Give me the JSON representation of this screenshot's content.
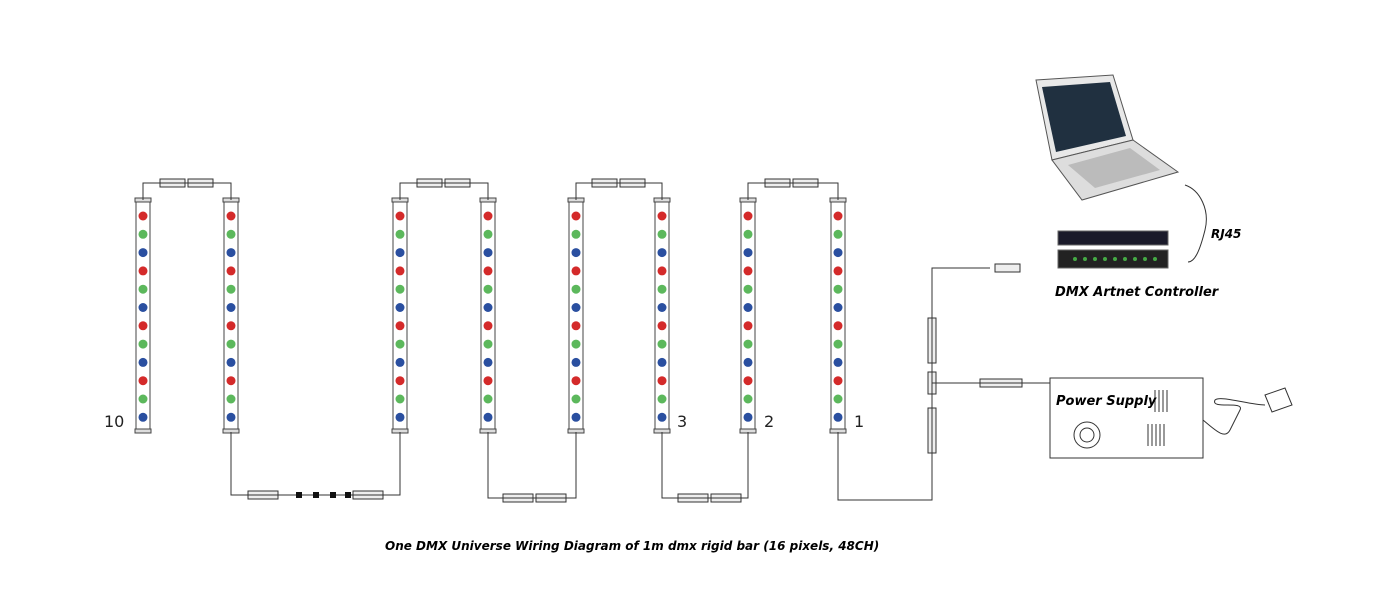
{
  "bar_labels": [
    "10",
    "3",
    "2",
    "1"
  ],
  "rj45_label": "RJ45",
  "controller_label": "DMX Artnet Controller",
  "power_supply_label": "Power Supply",
  "caption": "One DMX Universe  Wiring Diagram of 1m dmx rigid bar  (16 pixels, 48CH)"
}
